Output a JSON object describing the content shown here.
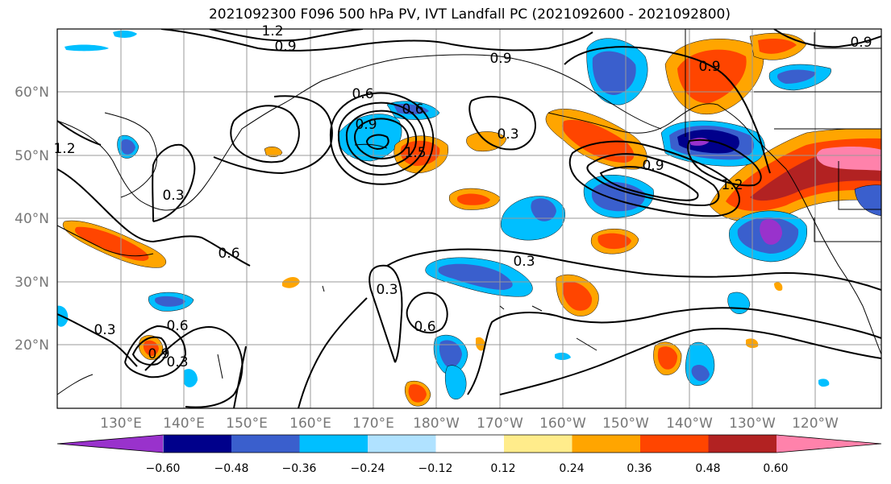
{
  "title": "2021092300 F096 500 hPa PV, IVT Landfall PC (2021092600 - 2021092800)",
  "lat_labels": [
    "60°N",
    "50°N",
    "40°N",
    "30°N",
    "20°N"
  ],
  "lon_labels": [
    "130°E",
    "140°E",
    "150°E",
    "160°E",
    "170°E",
    "180°W",
    "170°W",
    "160°W",
    "150°W",
    "140°W",
    "130°W",
    "120°W"
  ],
  "contour_labels": [
    "1.2",
    "0.9",
    "0.9",
    "0.6",
    "0.6",
    "0.9",
    "1.5",
    "0.3",
    "0.9",
    "0.9",
    "1.2",
    "0.3",
    "0.6",
    "0.3",
    "0.6",
    "0.3",
    "0.6",
    "0.3",
    "0.9",
    "0.3",
    "1.2",
    "0.9"
  ],
  "colorbar": {
    "ticks": [
      "−0.60",
      "−0.48",
      "−0.36",
      "−0.24",
      "−0.12",
      "0.12",
      "0.24",
      "0.36",
      "0.48",
      "0.60"
    ],
    "colors": [
      "#9932cc",
      "#00008b",
      "#3a5fcd",
      "#00bfff",
      "#b0e2ff",
      "#ffffff",
      "#ffec8b",
      "#ffa500",
      "#ff4500",
      "#b22222",
      "#ff82ab"
    ]
  }
}
